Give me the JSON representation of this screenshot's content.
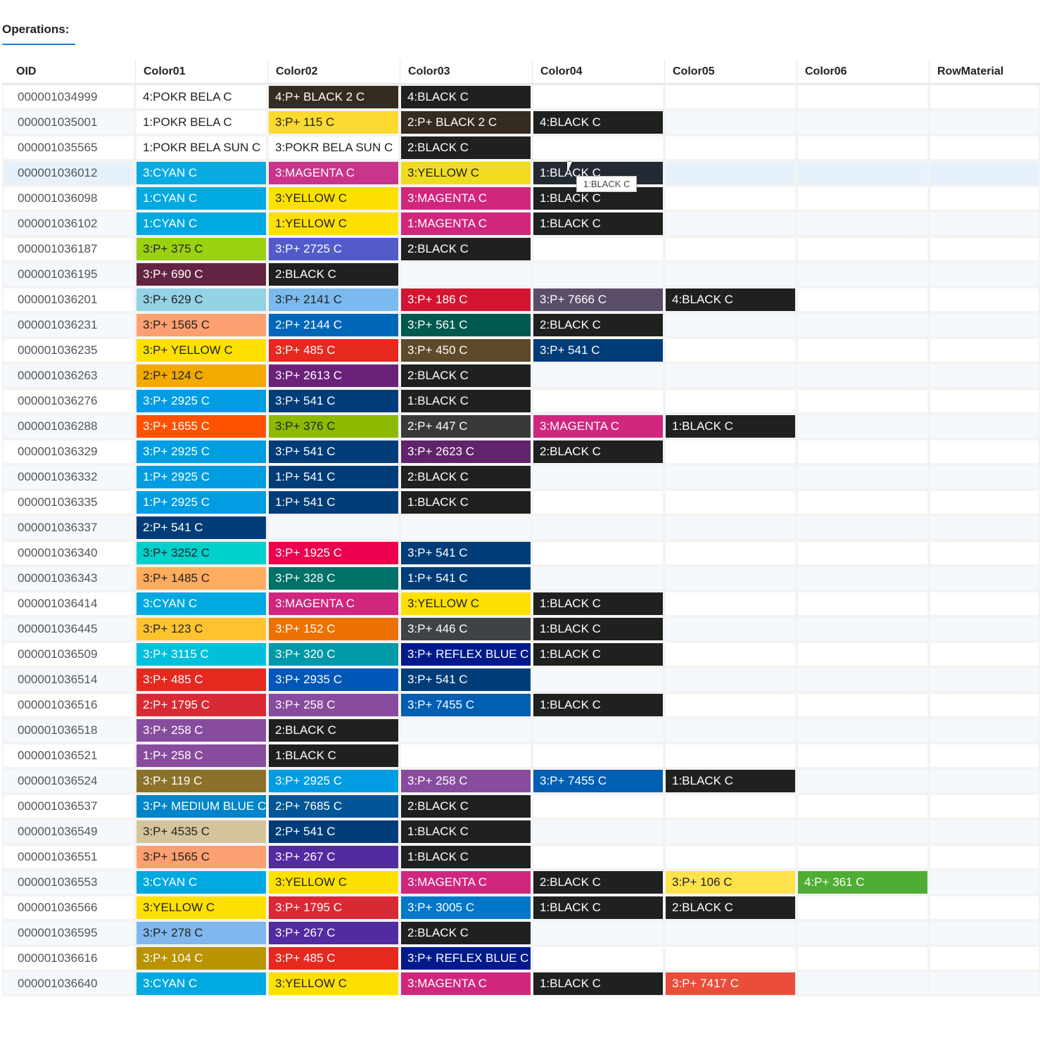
{
  "section": {
    "title": "Operations:"
  },
  "columns": [
    "OID",
    "Color01",
    "Color02",
    "Color03",
    "Color04",
    "Color05",
    "Color06",
    "RowMaterial"
  ],
  "tooltip": {
    "text": "1:BLACK C",
    "row_index": 3,
    "column": "Color04"
  },
  "hovered_row_index": 3,
  "rows": [
    {
      "oid": "000001034999",
      "colors": [
        {
          "label": "4:POKR BELA C",
          "bg": "#ffffff",
          "fg": "#222222"
        },
        {
          "label": "4:P+ BLACK 2 C",
          "bg": "#352c21",
          "fg": "#ffffff"
        },
        {
          "label": "4:BLACK C",
          "bg": "#1f2020",
          "fg": "#ffffff"
        },
        null,
        null,
        null
      ],
      "material": ""
    },
    {
      "oid": "000001035001",
      "colors": [
        {
          "label": "1:POKR BELA C",
          "bg": "#ffffff",
          "fg": "#222222"
        },
        {
          "label": "3:P+ 115 C",
          "bg": "#fcd92f",
          "fg": "#222222"
        },
        {
          "label": "2:P+ BLACK 2 C",
          "bg": "#352c21",
          "fg": "#ffffff"
        },
        {
          "label": "4:BLACK C",
          "bg": "#1f2020",
          "fg": "#ffffff"
        },
        null,
        null
      ],
      "material": ""
    },
    {
      "oid": "000001035565",
      "colors": [
        {
          "label": "1:POKR BELA SUN C",
          "bg": "#ffffff",
          "fg": "#222222"
        },
        {
          "label": "3:POKR BELA SUN C",
          "bg": "#ffffff",
          "fg": "#222222"
        },
        {
          "label": "2:BLACK C",
          "bg": "#1f2020",
          "fg": "#ffffff"
        },
        null,
        null,
        null
      ],
      "material": ""
    },
    {
      "oid": "000001036012",
      "colors": [
        {
          "label": "3:CYAN C",
          "bg": "#0aabe0",
          "fg": "#ffffff"
        },
        {
          "label": "3:MAGENTA C",
          "bg": "#c8358a",
          "fg": "#ffffff"
        },
        {
          "label": "3:YELLOW C",
          "bg": "#f0dc1e",
          "fg": "#222222"
        },
        {
          "label": "1:BLACK C",
          "bg": "#232a33",
          "fg": "#ffffff"
        },
        null,
        null
      ],
      "material": ""
    },
    {
      "oid": "000001036098",
      "colors": [
        {
          "label": "1:CYAN C",
          "bg": "#00a9e0",
          "fg": "#ffffff"
        },
        {
          "label": "3:YELLOW C",
          "bg": "#fee000",
          "fg": "#222222"
        },
        {
          "label": "3:MAGENTA C",
          "bg": "#d0267d",
          "fg": "#ffffff"
        },
        {
          "label": "1:BLACK C",
          "bg": "#1f2020",
          "fg": "#ffffff"
        },
        null,
        null
      ],
      "material": ""
    },
    {
      "oid": "000001036102",
      "colors": [
        {
          "label": "1:CYAN C",
          "bg": "#00a9e0",
          "fg": "#ffffff"
        },
        {
          "label": "1:YELLOW C",
          "bg": "#fee000",
          "fg": "#222222"
        },
        {
          "label": "1:MAGENTA C",
          "bg": "#d0267d",
          "fg": "#ffffff"
        },
        {
          "label": "1:BLACK C",
          "bg": "#1f2020",
          "fg": "#ffffff"
        },
        null,
        null
      ],
      "material": ""
    },
    {
      "oid": "000001036187",
      "colors": [
        {
          "label": "3:P+ 375 C",
          "bg": "#9bd210",
          "fg": "#222222"
        },
        {
          "label": "3:P+ 2725 C",
          "bg": "#525bc9",
          "fg": "#ffffff"
        },
        {
          "label": "2:BLACK C",
          "bg": "#1f2020",
          "fg": "#ffffff"
        },
        null,
        null,
        null
      ],
      "material": ""
    },
    {
      "oid": "000001036195",
      "colors": [
        {
          "label": "3:P+ 690 C",
          "bg": "#632442",
          "fg": "#ffffff"
        },
        {
          "label": "2:BLACK C",
          "bg": "#1f2020",
          "fg": "#ffffff"
        },
        null,
        null,
        null,
        null
      ],
      "material": ""
    },
    {
      "oid": "000001036201",
      "colors": [
        {
          "label": "3:P+ 629 C",
          "bg": "#94d2e5",
          "fg": "#222222"
        },
        {
          "label": "3:P+ 2141 C",
          "bg": "#7bbaee",
          "fg": "#222222"
        },
        {
          "label": "3:P+ 186 C",
          "bg": "#d21530",
          "fg": "#ffffff"
        },
        {
          "label": "3:P+ 7666 C",
          "bg": "#5b4e69",
          "fg": "#ffffff"
        },
        {
          "label": "4:BLACK C",
          "bg": "#1f2020",
          "fg": "#ffffff"
        },
        null
      ],
      "material": ""
    },
    {
      "oid": "000001036231",
      "colors": [
        {
          "label": "3:P+ 1565 C",
          "bg": "#fda071",
          "fg": "#222222"
        },
        {
          "label": "2:P+ 2144 C",
          "bg": "#0067b8",
          "fg": "#ffffff"
        },
        {
          "label": "3:P+ 561 C",
          "bg": "#00594e",
          "fg": "#ffffff"
        },
        {
          "label": "2:BLACK C",
          "bg": "#1f2020",
          "fg": "#ffffff"
        },
        null,
        null
      ],
      "material": ""
    },
    {
      "oid": "000001036235",
      "colors": [
        {
          "label": "3:P+ YELLOW C",
          "bg": "#fee000",
          "fg": "#222222"
        },
        {
          "label": "3:P+ 485 C",
          "bg": "#e5291f",
          "fg": "#ffffff"
        },
        {
          "label": "3:P+ 450 C",
          "bg": "#5e4a2a",
          "fg": "#ffffff"
        },
        {
          "label": "3:P+ 541 C",
          "bg": "#003d78",
          "fg": "#ffffff"
        },
        null,
        null
      ],
      "material": ""
    },
    {
      "oid": "000001036263",
      "colors": [
        {
          "label": "2:P+ 124 C",
          "bg": "#f2a900",
          "fg": "#222222"
        },
        {
          "label": "3:P+ 2613 C",
          "bg": "#6a2279",
          "fg": "#ffffff"
        },
        {
          "label": "2:BLACK C",
          "bg": "#1f2020",
          "fg": "#ffffff"
        },
        null,
        null,
        null
      ],
      "material": ""
    },
    {
      "oid": "000001036276",
      "colors": [
        {
          "label": "3:P+ 2925 C",
          "bg": "#009de3",
          "fg": "#ffffff"
        },
        {
          "label": "3:P+ 541 C",
          "bg": "#003d78",
          "fg": "#ffffff"
        },
        {
          "label": "1:BLACK C",
          "bg": "#1f2020",
          "fg": "#ffffff"
        },
        null,
        null,
        null
      ],
      "material": ""
    },
    {
      "oid": "000001036288",
      "colors": [
        {
          "label": "3:P+ 1655 C",
          "bg": "#fe5200",
          "fg": "#ffffff"
        },
        {
          "label": "3:P+ 376 C",
          "bg": "#8cba00",
          "fg": "#222222"
        },
        {
          "label": "2:P+ 447 C",
          "bg": "#393a38",
          "fg": "#ffffff"
        },
        {
          "label": "3:MAGENTA C",
          "bg": "#d0267d",
          "fg": "#ffffff"
        },
        {
          "label": "1:BLACK C",
          "bg": "#1f2020",
          "fg": "#ffffff"
        },
        null
      ],
      "material": ""
    },
    {
      "oid": "000001036329",
      "colors": [
        {
          "label": "3:P+ 2925 C",
          "bg": "#009de3",
          "fg": "#ffffff"
        },
        {
          "label": "3:P+ 541 C",
          "bg": "#003d78",
          "fg": "#ffffff"
        },
        {
          "label": "3:P+ 2623 C",
          "bg": "#5f2469",
          "fg": "#ffffff"
        },
        {
          "label": "2:BLACK C",
          "bg": "#1f2020",
          "fg": "#ffffff"
        },
        null,
        null
      ],
      "material": ""
    },
    {
      "oid": "000001036332",
      "colors": [
        {
          "label": "1:P+ 2925 C",
          "bg": "#009de3",
          "fg": "#ffffff"
        },
        {
          "label": "1:P+ 541 C",
          "bg": "#003d78",
          "fg": "#ffffff"
        },
        {
          "label": "2:BLACK C",
          "bg": "#1f2020",
          "fg": "#ffffff"
        },
        null,
        null,
        null
      ],
      "material": ""
    },
    {
      "oid": "000001036335",
      "colors": [
        {
          "label": "1:P+ 2925 C",
          "bg": "#009de3",
          "fg": "#ffffff"
        },
        {
          "label": "1:P+ 541 C",
          "bg": "#003d78",
          "fg": "#ffffff"
        },
        {
          "label": "1:BLACK C",
          "bg": "#1f2020",
          "fg": "#ffffff"
        },
        null,
        null,
        null
      ],
      "material": ""
    },
    {
      "oid": "000001036337",
      "colors": [
        {
          "label": "2:P+ 541 C",
          "bg": "#003d78",
          "fg": "#ffffff"
        },
        null,
        null,
        null,
        null,
        null
      ],
      "material": ""
    },
    {
      "oid": "000001036340",
      "colors": [
        {
          "label": "3:P+ 3252 C",
          "bg": "#00d1cc",
          "fg": "#222222"
        },
        {
          "label": "3:P+ 1925 C",
          "bg": "#eb004e",
          "fg": "#ffffff"
        },
        {
          "label": "3:P+ 541 C",
          "bg": "#003d78",
          "fg": "#ffffff"
        },
        null,
        null,
        null
      ],
      "material": ""
    },
    {
      "oid": "000001036343",
      "colors": [
        {
          "label": "3:P+ 1485 C",
          "bg": "#feac5e",
          "fg": "#222222"
        },
        {
          "label": "3:P+ 328 C",
          "bg": "#007168",
          "fg": "#ffffff"
        },
        {
          "label": "1:P+ 541 C",
          "bg": "#003d78",
          "fg": "#ffffff"
        },
        null,
        null,
        null
      ],
      "material": ""
    },
    {
      "oid": "000001036414",
      "colors": [
        {
          "label": "3:CYAN C",
          "bg": "#00a9e0",
          "fg": "#ffffff"
        },
        {
          "label": "3:MAGENTA C",
          "bg": "#d0267d",
          "fg": "#ffffff"
        },
        {
          "label": "3:YELLOW C",
          "bg": "#fee000",
          "fg": "#222222"
        },
        {
          "label": "1:BLACK C",
          "bg": "#1f2020",
          "fg": "#ffffff"
        },
        null,
        null
      ],
      "material": ""
    },
    {
      "oid": "000001036445",
      "colors": [
        {
          "label": "3:P+ 123 C",
          "bg": "#fec32f",
          "fg": "#222222"
        },
        {
          "label": "3:P+ 152 C",
          "bg": "#ed7100",
          "fg": "#ffffff"
        },
        {
          "label": "3:P+ 446 C",
          "bg": "#3e4345",
          "fg": "#ffffff"
        },
        {
          "label": "1:BLACK C",
          "bg": "#1f2020",
          "fg": "#ffffff"
        },
        null,
        null
      ],
      "material": ""
    },
    {
      "oid": "000001036509",
      "colors": [
        {
          "label": "3:P+ 3115 C",
          "bg": "#00c0db",
          "fg": "#ffffff"
        },
        {
          "label": "3:P+ 320 C",
          "bg": "#0099a8",
          "fg": "#ffffff"
        },
        {
          "label": "3:P+ REFLEX BLUE C",
          "bg": "#001a8c",
          "fg": "#ffffff"
        },
        {
          "label": "1:BLACK C",
          "bg": "#1f2020",
          "fg": "#ffffff"
        },
        null,
        null
      ],
      "material": ""
    },
    {
      "oid": "000001036514",
      "colors": [
        {
          "label": "3:P+ 485 C",
          "bg": "#e5291f",
          "fg": "#ffffff"
        },
        {
          "label": "3:P+ 2935 C",
          "bg": "#0057b8",
          "fg": "#ffffff"
        },
        {
          "label": "3:P+ 541 C",
          "bg": "#003d78",
          "fg": "#ffffff"
        },
        null,
        null,
        null
      ],
      "material": ""
    },
    {
      "oid": "000001036516",
      "colors": [
        {
          "label": "2:P+ 1795 C",
          "bg": "#d82a34",
          "fg": "#ffffff"
        },
        {
          "label": "3:P+ 258 C",
          "bg": "#884c9e",
          "fg": "#ffffff"
        },
        {
          "label": "3:P+ 7455 C",
          "bg": "#005eb3",
          "fg": "#ffffff"
        },
        {
          "label": "1:BLACK C",
          "bg": "#1f2020",
          "fg": "#ffffff"
        },
        null,
        null
      ],
      "material": ""
    },
    {
      "oid": "000001036518",
      "colors": [
        {
          "label": "3:P+ 258 C",
          "bg": "#884c9e",
          "fg": "#ffffff"
        },
        {
          "label": "2:BLACK C",
          "bg": "#1f2020",
          "fg": "#ffffff"
        },
        null,
        null,
        null,
        null
      ],
      "material": ""
    },
    {
      "oid": "000001036521",
      "colors": [
        {
          "label": "1:P+ 258 C",
          "bg": "#884c9e",
          "fg": "#ffffff"
        },
        {
          "label": "1:BLACK C",
          "bg": "#1f2020",
          "fg": "#ffffff"
        },
        null,
        null,
        null,
        null
      ],
      "material": ""
    },
    {
      "oid": "000001036524",
      "colors": [
        {
          "label": "3:P+ 119 C",
          "bg": "#8b722a",
          "fg": "#ffffff"
        },
        {
          "label": "3:P+ 2925 C",
          "bg": "#009de3",
          "fg": "#ffffff"
        },
        {
          "label": "3:P+ 258 C",
          "bg": "#884c9e",
          "fg": "#ffffff"
        },
        {
          "label": "3:P+ 7455 C",
          "bg": "#005eb3",
          "fg": "#ffffff"
        },
        {
          "label": "1:BLACK C",
          "bg": "#1f2020",
          "fg": "#ffffff"
        },
        null
      ],
      "material": ""
    },
    {
      "oid": "000001036537",
      "colors": [
        {
          "label": "3:P+ MEDIUM BLUE C",
          "bg": "#0085ca",
          "fg": "#ffffff"
        },
        {
          "label": "2:P+ 7685 C",
          "bg": "#005696",
          "fg": "#ffffff"
        },
        {
          "label": "2:BLACK C",
          "bg": "#1f2020",
          "fg": "#ffffff"
        },
        null,
        null,
        null
      ],
      "material": ""
    },
    {
      "oid": "000001036549",
      "colors": [
        {
          "label": "3:P+ 4535 C",
          "bg": "#d4c49c",
          "fg": "#222222"
        },
        {
          "label": "2:P+ 541 C",
          "bg": "#003d78",
          "fg": "#ffffff"
        },
        {
          "label": "1:BLACK C",
          "bg": "#1f2020",
          "fg": "#ffffff"
        },
        null,
        null,
        null
      ],
      "material": ""
    },
    {
      "oid": "000001036551",
      "colors": [
        {
          "label": "3:P+ 1565 C",
          "bg": "#fda071",
          "fg": "#222222"
        },
        {
          "label": "3:P+ 267 C",
          "bg": "#532ba0",
          "fg": "#ffffff"
        },
        {
          "label": "1:BLACK C",
          "bg": "#1f2020",
          "fg": "#ffffff"
        },
        null,
        null,
        null
      ],
      "material": ""
    },
    {
      "oid": "000001036553",
      "colors": [
        {
          "label": "3:CYAN C",
          "bg": "#00a9e0",
          "fg": "#ffffff"
        },
        {
          "label": "3:YELLOW C",
          "bg": "#fee000",
          "fg": "#222222"
        },
        {
          "label": "3:MAGENTA C",
          "bg": "#d0267d",
          "fg": "#ffffff"
        },
        {
          "label": "2:BLACK C",
          "bg": "#1f2020",
          "fg": "#ffffff"
        },
        {
          "label": "3:P+ 106 C",
          "bg": "#fde24c",
          "fg": "#222222"
        },
        {
          "label": "4:P+ 361 C",
          "bg": "#4fad33",
          "fg": "#ffffff"
        }
      ],
      "material": ""
    },
    {
      "oid": "000001036566",
      "colors": [
        {
          "label": "3:YELLOW C",
          "bg": "#fee000",
          "fg": "#222222"
        },
        {
          "label": "3:P+ 1795 C",
          "bg": "#d82a34",
          "fg": "#ffffff"
        },
        {
          "label": "3:P+ 3005 C",
          "bg": "#0077c8",
          "fg": "#ffffff"
        },
        {
          "label": "1:BLACK C",
          "bg": "#1f2020",
          "fg": "#ffffff"
        },
        {
          "label": "2:BLACK C",
          "bg": "#1f2020",
          "fg": "#ffffff"
        },
        null
      ],
      "material": ""
    },
    {
      "oid": "000001036595",
      "colors": [
        {
          "label": "3:P+ 278 C",
          "bg": "#7fb7ee",
          "fg": "#222222"
        },
        {
          "label": "3:P+ 267 C",
          "bg": "#532ba0",
          "fg": "#ffffff"
        },
        {
          "label": "2:BLACK C",
          "bg": "#1f2020",
          "fg": "#ffffff"
        },
        null,
        null,
        null
      ],
      "material": ""
    },
    {
      "oid": "000001036616",
      "colors": [
        {
          "label": "3:P+ 104 C",
          "bg": "#b99300",
          "fg": "#ffffff"
        },
        {
          "label": "3:P+ 485 C",
          "bg": "#e5291f",
          "fg": "#ffffff"
        },
        {
          "label": "3:P+ REFLEX BLUE C",
          "bg": "#001a8c",
          "fg": "#ffffff"
        },
        null,
        null,
        null
      ],
      "material": ""
    },
    {
      "oid": "000001036640",
      "colors": [
        {
          "label": "3:CYAN C",
          "bg": "#00a9e0",
          "fg": "#ffffff"
        },
        {
          "label": "3:YELLOW C",
          "bg": "#fee000",
          "fg": "#222222"
        },
        {
          "label": "3:MAGENTA C",
          "bg": "#d0267d",
          "fg": "#ffffff"
        },
        {
          "label": "1:BLACK C",
          "bg": "#1f2020",
          "fg": "#ffffff"
        },
        {
          "label": "3:P+ 7417 C",
          "bg": "#eb4d3b",
          "fg": "#ffffff"
        },
        null
      ],
      "material": ""
    }
  ]
}
